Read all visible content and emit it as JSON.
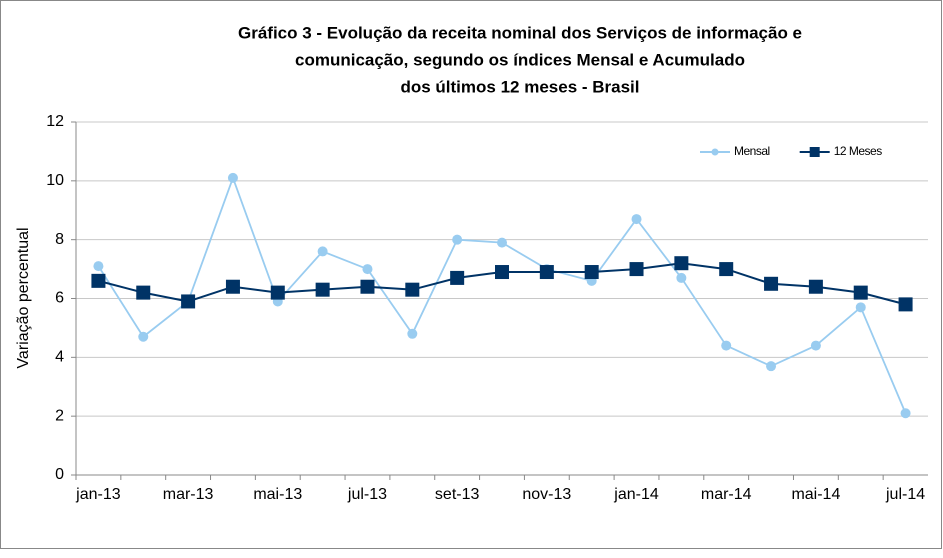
{
  "chart_data": {
    "type": "line",
    "title": [
      "Gráfico 3 - Evolução da receita nominal dos Serviços de informação e",
      "comunicação, segundo os índices Mensal e Acumulado",
      "dos últimos 12 meses - Brasil"
    ],
    "y_label": "Variação percentual",
    "categories": [
      "jan-13",
      null,
      "mar-13",
      null,
      "mai-13",
      null,
      "jul-13",
      null,
      "set-13",
      null,
      "nov-13",
      null,
      "jan-14",
      null,
      "mar-14",
      null,
      "mai-14",
      null,
      "jul-14"
    ],
    "series": [
      {
        "name": "Mensal",
        "color": "#99ccf0",
        "marker": "circle",
        "values": [
          7.1,
          4.7,
          5.9,
          10.1,
          5.9,
          7.6,
          7.0,
          4.8,
          8.0,
          7.9,
          7.0,
          6.6,
          8.7,
          6.7,
          4.4,
          3.7,
          4.4,
          5.7,
          2.1
        ]
      },
      {
        "name": "12 Meses",
        "color": "#003366",
        "marker": "square",
        "values": [
          6.6,
          6.2,
          5.9,
          6.4,
          6.2,
          6.3,
          6.4,
          6.3,
          6.7,
          6.9,
          6.9,
          6.9,
          7.0,
          7.2,
          7.0,
          6.5,
          6.4,
          6.2,
          5.8
        ]
      }
    ],
    "ylim": [
      0,
      12
    ],
    "yticks": [
      0,
      2,
      4,
      6,
      8,
      10,
      12
    ],
    "grid": true,
    "legend": "top-right"
  }
}
